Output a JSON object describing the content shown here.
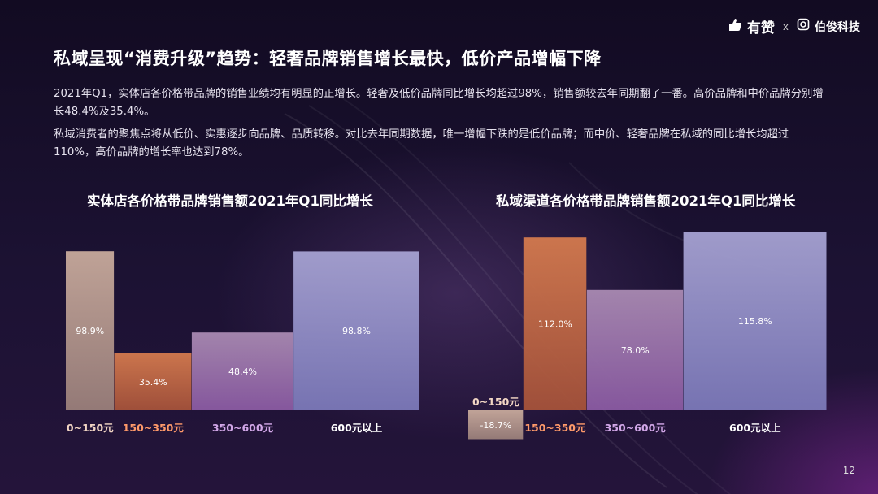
{
  "brand": {
    "name1": "有赞",
    "separator": "x",
    "name2": "伯俊科技"
  },
  "title": "私域呈现“消费升级”趋势：轻奢品牌销售增长最快，低价产品增幅下降",
  "paragraphs": [
    "2021年Q1，实体店各价格带品牌的销售业绩均有明显的正增长。轻奢及低价品牌同比增长均超过98%，销售额较去年同期翻了一番。高价品牌和中价品牌分别增长48.4%及35.4%。",
    "私域消费者的聚焦点将从低价、实惠逐步向品牌、品质转移。对比去年同期数据，唯一增幅下跌的是低价品牌；而中价、轻奢品牌在私域的同比增长均超过110%，高价品牌的增长率也达到78%。"
  ],
  "page_number": "12",
  "colors": {
    "low": "#b49a8e",
    "mid": "#c56f4a",
    "high": "#9a6ea8",
    "lux": "#8e8cc4",
    "label_low": "#f2d6c4",
    "label_mid": "#ff9a6a",
    "label_high": "#d2a7e8",
    "label_lux": "#ffffff"
  },
  "chart_data": [
    {
      "type": "bar",
      "title": "实体店各价格带品牌销售额2021年Q1同比增长",
      "categories": [
        "0~150元",
        "150~350元",
        "350~600元",
        "600元以上"
      ],
      "values": [
        98.9,
        35.4,
        48.4,
        98.8
      ],
      "value_labels": [
        "98.9%",
        "35.4%",
        "48.4%",
        "98.8%"
      ],
      "widths": [
        1,
        1.6,
        2.1,
        2.6
      ]
    },
    {
      "type": "bar",
      "title": "私域渠道各价格带品牌销售额2021年Q1同比增长",
      "categories": [
        "0~150元",
        "150~350元",
        "350~600元",
        "600元以上"
      ],
      "values": [
        -18.7,
        112.0,
        78.0,
        115.8
      ],
      "value_labels": [
        "-18.7%",
        "112.0%",
        "78.0%",
        "115.8%"
      ],
      "widths": [
        1,
        1.15,
        1.75,
        2.6
      ]
    }
  ]
}
